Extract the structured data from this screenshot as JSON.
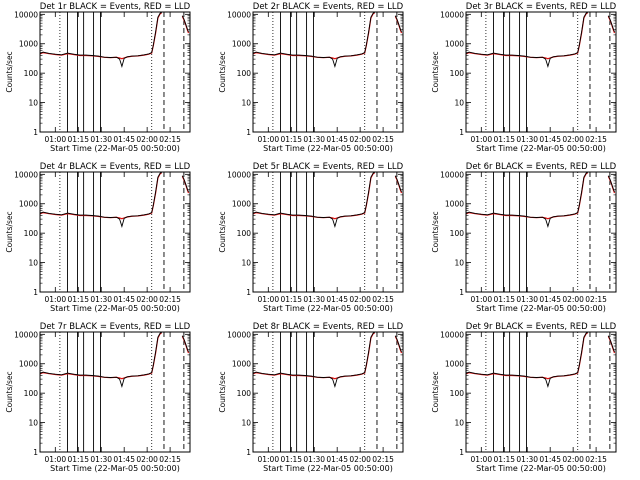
{
  "colors": {
    "events": "#000000",
    "lld": "#e01010",
    "frame": "#000000"
  },
  "chart_data": [
    {
      "title": "Det 1r  BLACK = Events, RED = LLD"
    },
    {
      "title": "Det 2r  BLACK = Events, RED = LLD"
    },
    {
      "title": "Det 3r  BLACK = Events, RED = LLD"
    },
    {
      "title": "Det 4r  BLACK = Events, RED = LLD"
    },
    {
      "title": "Det 5r  BLACK = Events, RED = LLD"
    },
    {
      "title": "Det 6r  BLACK = Events, RED = LLD"
    },
    {
      "title": "Det 7r  BLACK = Events, RED = LLD"
    },
    {
      "title": "Det 8r  BLACK = Events, RED = LLD"
    },
    {
      "title": "Det 9r  BLACK = Events, RED = LLD"
    }
  ],
  "shared": {
    "type": "line",
    "xlabel": "Start Time (22-Mar-05 00:50:00)",
    "ylabel": "Counts/sec",
    "y_scale": "log",
    "ylim": [
      1,
      12000
    ],
    "xlim_min": [
      50,
      148
    ],
    "xticks": [
      {
        "v": 60,
        "label": "01:00"
      },
      {
        "v": 75,
        "label": "01:15"
      },
      {
        "v": 90,
        "label": "01:30"
      },
      {
        "v": 105,
        "label": "01:45"
      },
      {
        "v": 120,
        "label": "02:00"
      },
      {
        "v": 135,
        "label": "02:15"
      }
    ],
    "yticks": [
      {
        "v": 1,
        "label": "1"
      },
      {
        "v": 10,
        "label": "10"
      },
      {
        "v": 100,
        "label": "100"
      },
      {
        "v": 1000,
        "label": "1000"
      },
      {
        "v": 10000,
        "label": "10000"
      }
    ],
    "vlines_dotted": [
      63,
      123
    ],
    "vlines_solid": [
      68,
      74.5,
      78.5,
      85,
      89.5
    ],
    "vlines_dashed": [
      131,
      144
    ],
    "events": {
      "x": [
        50,
        52,
        56,
        60,
        64,
        68,
        72,
        76,
        80,
        84,
        88,
        92,
        96,
        100,
        102,
        103.5,
        105,
        107,
        110,
        114,
        118,
        121,
        123,
        124,
        125.5,
        127,
        128.5,
        129.5
      ],
      "y": [
        470,
        520,
        470,
        440,
        420,
        480,
        440,
        410,
        410,
        400,
        380,
        350,
        340,
        350,
        300,
        170,
        320,
        360,
        380,
        390,
        420,
        450,
        500,
        900,
        2500,
        8000,
        11000,
        11500
      ]
    },
    "events_b": {
      "x": [
        143,
        144,
        145,
        146,
        147
      ],
      "y": [
        9000,
        7000,
        5000,
        3500,
        2500
      ]
    },
    "lld": {
      "x": [
        50,
        52,
        56,
        60,
        64,
        68,
        72,
        76,
        80,
        84,
        88,
        92,
        96,
        100,
        102,
        103.5,
        105,
        107,
        110,
        114,
        118,
        121,
        123,
        124,
        125.5,
        127,
        128.5,
        129.5
      ],
      "y": [
        450,
        500,
        460,
        430,
        410,
        460,
        430,
        400,
        400,
        390,
        370,
        345,
        335,
        345,
        330,
        310,
        330,
        355,
        375,
        385,
        410,
        440,
        480,
        850,
        2300,
        7500,
        10500,
        11200
      ]
    },
    "lld_b": {
      "x": [
        143,
        144,
        145,
        146,
        147
      ],
      "y": [
        8500,
        6500,
        4800,
        3300,
        2300
      ]
    }
  }
}
